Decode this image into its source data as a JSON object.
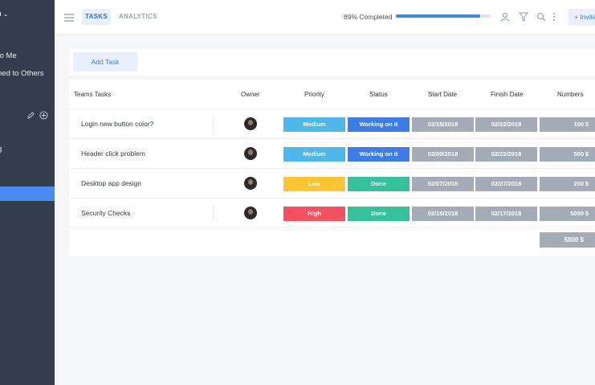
{
  "sidebar": {
    "top_label": "n",
    "items": [
      {
        "label": "to Me"
      },
      {
        "label": "ned to Others"
      },
      {
        "label": "g"
      }
    ]
  },
  "header": {
    "tabs": [
      {
        "label": "TASKS",
        "active": true
      },
      {
        "label": "ANALYTICS",
        "active": false
      }
    ],
    "progress_text": "89% Completed",
    "progress_fraction": 0.89,
    "invite_label": "+ Invite"
  },
  "actions": {
    "add_task_label": "Add Task"
  },
  "table": {
    "headers": {
      "name": "Teams Tasks",
      "owner": "Owner",
      "priority": "Priority",
      "status": "Status",
      "start": "Start Date",
      "finish": "Finish Date",
      "numbers": "Numbers"
    },
    "currency": "$",
    "rows": [
      {
        "name": "Login new button color?",
        "priority": "Medium",
        "priority_color": "#4fb8ea",
        "status": "Working on it",
        "status_color": "#3d7de8",
        "start": "02/15/2018",
        "finish": "02/22/2018",
        "number": "100"
      },
      {
        "name": "Header click problem",
        "priority": "Medium",
        "priority_color": "#4fb8ea",
        "status": "Working on it",
        "status_color": "#3d7de8",
        "start": "02/09/2018",
        "finish": "02/22/2018",
        "number": "500"
      },
      {
        "name": "Desktop app design",
        "priority": "Low",
        "priority_color": "#fcc531",
        "status": "Done",
        "status_color": "#34c29a",
        "start": "02/07/2018",
        "finish": "02/27/2018",
        "number": "200"
      },
      {
        "name": "Security Checks",
        "priority": "High",
        "priority_color": "#f5515e",
        "status": "Done",
        "status_color": "#34c29a",
        "start": "02/15/2018",
        "finish": "02/17/2018",
        "number": "5000"
      }
    ],
    "total": "5800 $"
  }
}
